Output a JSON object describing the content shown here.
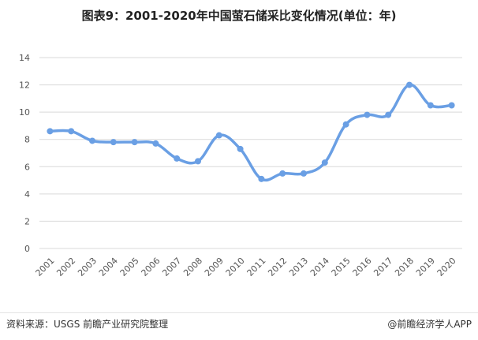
{
  "title": "图表9：2001-2020年中国萤石储采比变化情况(单位：年)",
  "footer": {
    "source": "资料来源：USGS 前瞻产业研究院整理",
    "brand": "@前瞻经济学人APP"
  },
  "colors": {
    "line": "#6a9fe4",
    "grid": "#d9d9d9",
    "text": "#555555"
  },
  "chart_data": {
    "type": "line",
    "title": "图表9：2001-2020年中国萤石储采比变化情况(单位：年)",
    "xlabel": "",
    "ylabel": "",
    "ylim": [
      0,
      14
    ],
    "yticks": [
      "0",
      "2",
      "4",
      "6",
      "8",
      "10",
      "12",
      "14"
    ],
    "categories": [
      "2001",
      "2002",
      "2003",
      "2004",
      "2005",
      "2006",
      "2007",
      "2008",
      "2009",
      "2010",
      "2011",
      "2012",
      "2013",
      "2014",
      "2015",
      "2016",
      "2017",
      "2018",
      "2019",
      "2020"
    ],
    "series": [
      {
        "values": [
          8.6,
          8.6,
          7.9,
          7.8,
          7.8,
          7.7,
          6.6,
          6.4,
          8.3,
          7.3,
          5.1,
          5.5,
          5.5,
          6.3,
          9.1,
          9.8,
          9.8,
          12.0,
          10.5,
          10.5
        ]
      }
    ],
    "grid": "horizontal",
    "legend": "none"
  }
}
